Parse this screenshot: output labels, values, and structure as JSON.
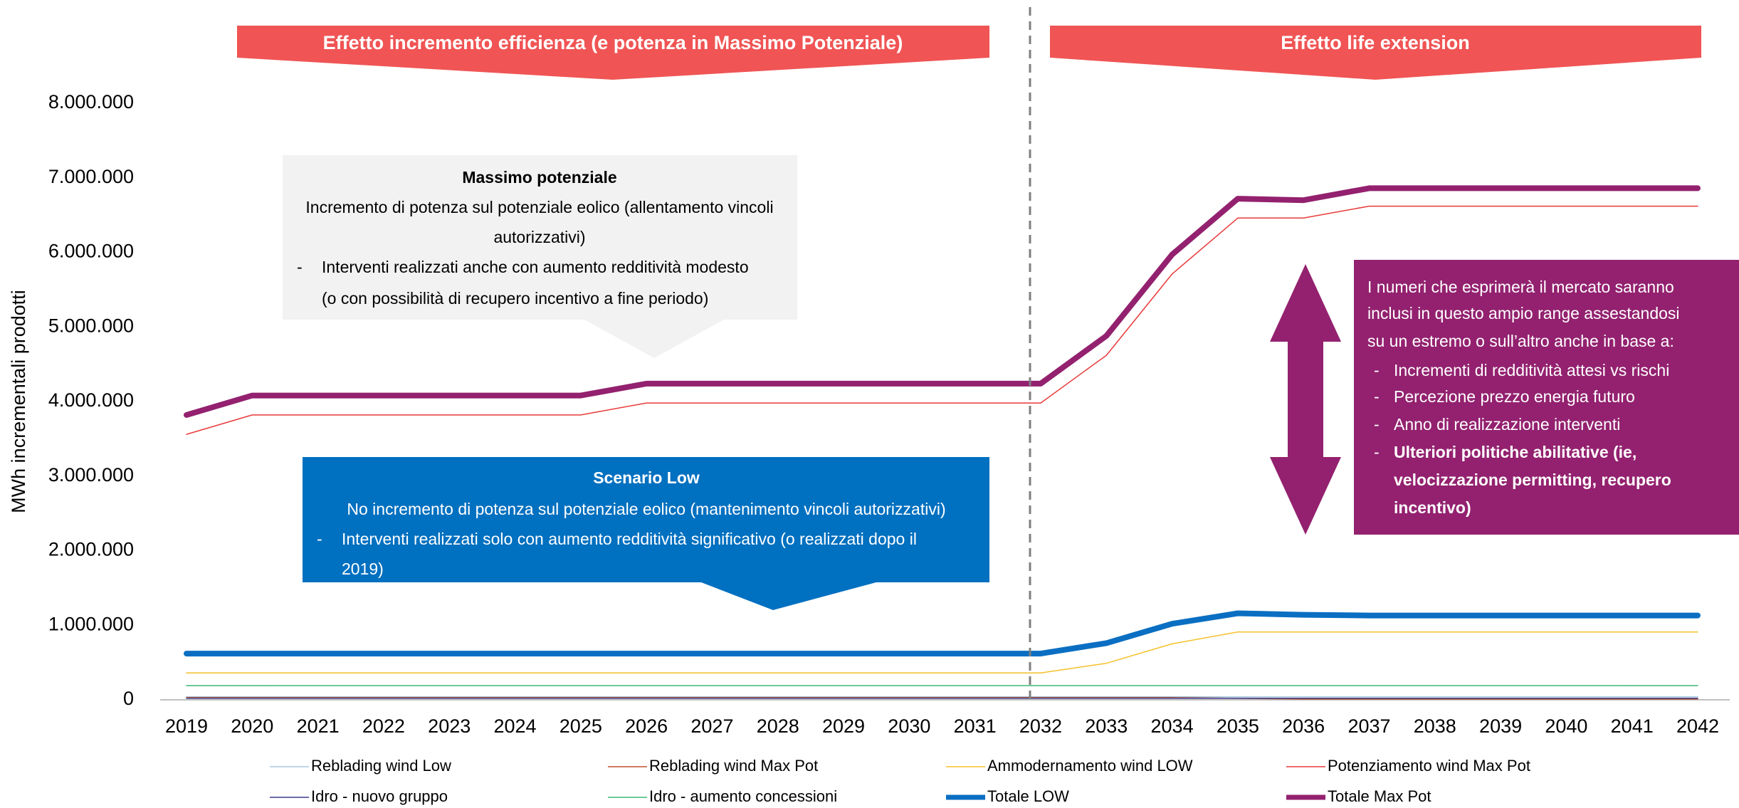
{
  "chart_data": {
    "type": "line",
    "y_axis_label": "MWh incrementali prodotti",
    "categories": [
      "2019",
      "2020",
      "2021",
      "2022",
      "2023",
      "2024",
      "2025",
      "2026",
      "2027",
      "2028",
      "2029",
      "2030",
      "2031",
      "2032",
      "2033",
      "2034",
      "2035",
      "2036",
      "2037",
      "2038",
      "2039",
      "2040",
      "2041",
      "2042"
    ],
    "ylim": [
      0,
      8000000
    ],
    "yticks": [
      0,
      {
        "value": 1000000,
        "label": "1.000.000"
      },
      {
        "value": 2000000,
        "label": "2.000.000"
      },
      {
        "value": 3000000,
        "label": "3.000.000"
      },
      {
        "value": 4000000,
        "label": "4.000.000"
      },
      {
        "value": 5000000,
        "label": "5.000.000"
      },
      {
        "value": 6000000,
        "label": "6.000.000"
      },
      {
        "value": 7000000,
        "label": "7.000.000"
      },
      {
        "value": 8000000,
        "label": "8.000.000"
      }
    ],
    "series": [
      {
        "name": "Reblading wind Low",
        "color": "#a9c9de",
        "width": 1.5,
        "values": [
          40000,
          40000,
          40000,
          40000,
          40000,
          40000,
          40000,
          40000,
          40000,
          40000,
          40000,
          40000,
          40000,
          40000,
          40000,
          40000,
          40000,
          40000,
          40000,
          40000,
          40000,
          40000,
          40000,
          40000
        ]
      },
      {
        "name": "Reblading wind Max Pot",
        "color": "#c0502d",
        "width": 1.5,
        "values": [
          30000,
          30000,
          30000,
          30000,
          30000,
          30000,
          30000,
          30000,
          30000,
          30000,
          30000,
          30000,
          30000,
          30000,
          30000,
          30000,
          20000,
          10000,
          10000,
          10000,
          10000,
          10000,
          10000,
          10000
        ]
      },
      {
        "name": "Ammodernamento wind LOW",
        "color": "#f5c02a",
        "width": 1.5,
        "values": [
          360000,
          360000,
          360000,
          360000,
          360000,
          360000,
          360000,
          360000,
          360000,
          360000,
          360000,
          360000,
          360000,
          360000,
          490000,
          750000,
          910000,
          910000,
          910000,
          910000,
          910000,
          910000,
          910000,
          910000
        ]
      },
      {
        "name": "Potenziamento wind Max Pot",
        "color": "#e83a3a",
        "width": 1.5,
        "values": [
          3560000,
          3820000,
          3820000,
          3820000,
          3820000,
          3820000,
          3820000,
          3980000,
          3980000,
          3980000,
          3980000,
          3980000,
          3980000,
          3980000,
          4620000,
          5710000,
          6460000,
          6460000,
          6620000,
          6620000,
          6620000,
          6620000,
          6620000,
          6620000
        ]
      },
      {
        "name": "Idro - nuovo gruppo",
        "color": "#3b3b8c",
        "width": 1.5,
        "values": [
          20000,
          20000,
          20000,
          20000,
          20000,
          20000,
          20000,
          20000,
          20000,
          20000,
          20000,
          20000,
          20000,
          20000,
          20000,
          20000,
          20000,
          20000,
          20000,
          20000,
          20000,
          20000,
          20000,
          20000
        ]
      },
      {
        "name": "Idro - aumento concessioni",
        "color": "#3cb878",
        "width": 1.5,
        "values": [
          190000,
          190000,
          190000,
          190000,
          190000,
          190000,
          190000,
          190000,
          190000,
          190000,
          190000,
          190000,
          190000,
          190000,
          190000,
          190000,
          190000,
          190000,
          190000,
          190000,
          190000,
          190000,
          190000,
          190000
        ]
      },
      {
        "name": "Totale LOW",
        "color": "#0a6fc2",
        "width": 8,
        "values": [
          620000,
          620000,
          620000,
          620000,
          620000,
          620000,
          620000,
          620000,
          620000,
          620000,
          620000,
          620000,
          620000,
          620000,
          760000,
          1020000,
          1160000,
          1140000,
          1130000,
          1130000,
          1130000,
          1130000,
          1130000,
          1130000
        ]
      },
      {
        "name": "Totale Max Pot",
        "color": "#93216f",
        "width": 8,
        "values": [
          3820000,
          4080000,
          4080000,
          4080000,
          4080000,
          4080000,
          4080000,
          4240000,
          4240000,
          4240000,
          4240000,
          4240000,
          4240000,
          4240000,
          4880000,
          5970000,
          6720000,
          6700000,
          6860000,
          6860000,
          6860000,
          6860000,
          6860000,
          6860000
        ]
      }
    ],
    "annotations": {
      "banner_left": "Effetto incremento efficienza (e potenza in Massimo Potenziale)",
      "banner_right": "Effetto life extension",
      "box_max": {
        "title": "Massimo potenziale",
        "lines": [
          "Incremento di potenza sul potenziale eolico (allentamento vincoli",
          "autorizzativi)"
        ],
        "bullet": {
          "marker": "-",
          "lines": [
            "Interventi realizzati anche con aumento redditività modesto",
            "(o con possibilità di recupero incentivo a fine periodo)"
          ]
        }
      },
      "box_low": {
        "title": "Scenario Low",
        "lines": [
          "No incremento di potenza sul potenziale eolico (mantenimento vincoli autorizzativi)"
        ],
        "bullet": {
          "marker": "-",
          "lines": [
            "Interventi realizzati solo con aumento redditività significativo (o realizzati dopo il",
            "2019)"
          ]
        }
      },
      "box_right": {
        "lines": [
          "I numeri che esprimerà il mercato saranno",
          "inclusi in questo ampio range assestandosi",
          "su un estremo o sull’altro anche in base a:"
        ],
        "bullets": [
          {
            "marker": "-",
            "lines": [
              "Incrementi di redditività attesi vs rischi"
            ]
          },
          {
            "marker": "-",
            "lines": [
              "Percezione prezzo energia futuro"
            ]
          },
          {
            "marker": "-",
            "lines": [
              "Anno di realizzazione interventi"
            ]
          },
          {
            "marker": "-",
            "bold": true,
            "lines": [
              "Ulteriori politiche abilitative (ie,",
              "velocizzazione permitting, recupero",
              "incentivo)"
            ]
          }
        ]
      }
    }
  }
}
